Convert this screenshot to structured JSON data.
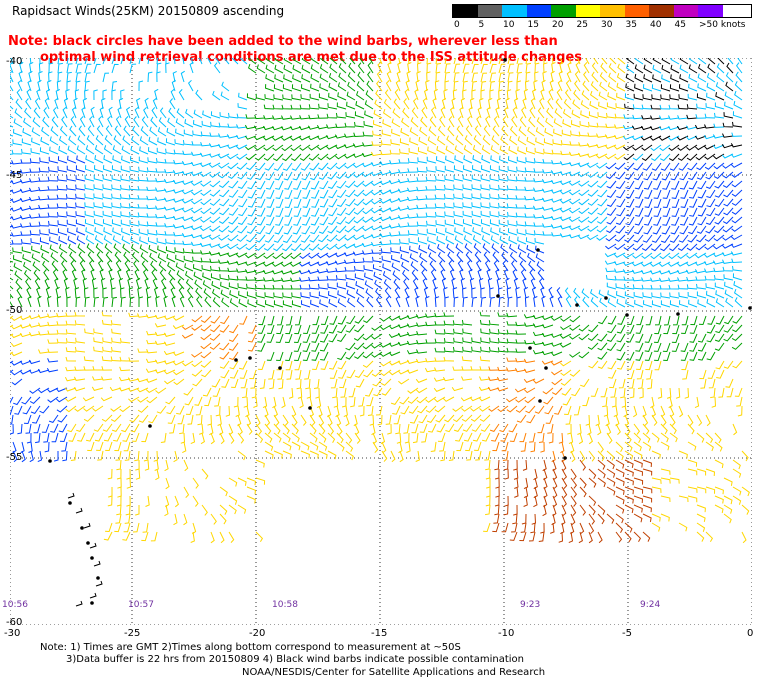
{
  "title": "Rapidsact Winds(25KM) 20150809 ascending",
  "note_line1": "Note: black circles have been added to the wind barbs, wherever less than",
  "note_line2": "optimal wind retrieval conditions are met due to the ISS attitude changes",
  "legend": {
    "labels": [
      "0",
      "5",
      "10",
      "15",
      "20",
      "25",
      "30",
      "35",
      "40",
      "45",
      ">50 knots"
    ],
    "colors": [
      "#000000",
      "#606060",
      "#00c0ff",
      "#0040ff",
      "#00a000",
      "#ffff00",
      "#ffc000",
      "#ff6000",
      "#a03000",
      "#c000c0",
      "#8000ff",
      "#200060"
    ]
  },
  "y_ticks": [
    "-40",
    "-45",
    "-50",
    "-55",
    "-60"
  ],
  "x_ticks": [
    "-30",
    "-25",
    "-20",
    "-15",
    "-10",
    "-5",
    "0"
  ],
  "time_labels": [
    "10:56",
    "10:57",
    "10:58",
    "9:23",
    "9:24"
  ],
  "footer": {
    "line1": "Note: 1) Times are GMT 2)Times along bottom correspond to measurement at ~50S",
    "line2": "3)Data buffer is 22 hrs from 20150809 4) Black wind barbs indicate possible contamination",
    "line3": "NOAA/NESDIS/Center for Satellite Applications and Research"
  }
}
